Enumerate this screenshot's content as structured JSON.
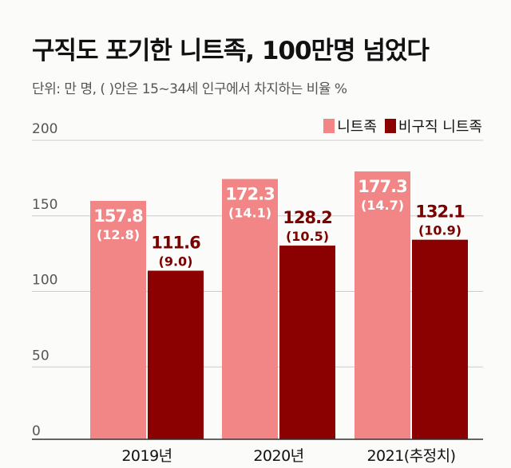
{
  "chart_data": {
    "type": "bar",
    "title": "구직도 포기한 니트족, 100만명 넘었다",
    "subtitle": "단위: 만 명, ( )안은 15~34세 인구에서 차지하는 비율 %",
    "categories": [
      "2019년",
      "2020년",
      "2021(추정치)"
    ],
    "series": [
      {
        "name": "니트족",
        "color": "#f28686",
        "values": [
          157.8,
          172.3,
          177.3
        ],
        "labels": [
          "157.8",
          "172.3",
          "177.3"
        ],
        "shares": [
          "(12.8)",
          "(14.1)",
          "(14.7)"
        ]
      },
      {
        "name": "비구직 니트족",
        "color": "#8b0000",
        "values": [
          111.6,
          128.2,
          132.1
        ],
        "labels": [
          "111.6",
          "128.2",
          "132.1"
        ],
        "shares": [
          "(9.0)",
          "(10.5)",
          "(10.9)"
        ]
      }
    ],
    "yticks": [
      "0",
      "50",
      "100",
      "150",
      "200"
    ],
    "ylim": [
      0,
      200
    ],
    "grid": true,
    "legend": "top-right"
  }
}
